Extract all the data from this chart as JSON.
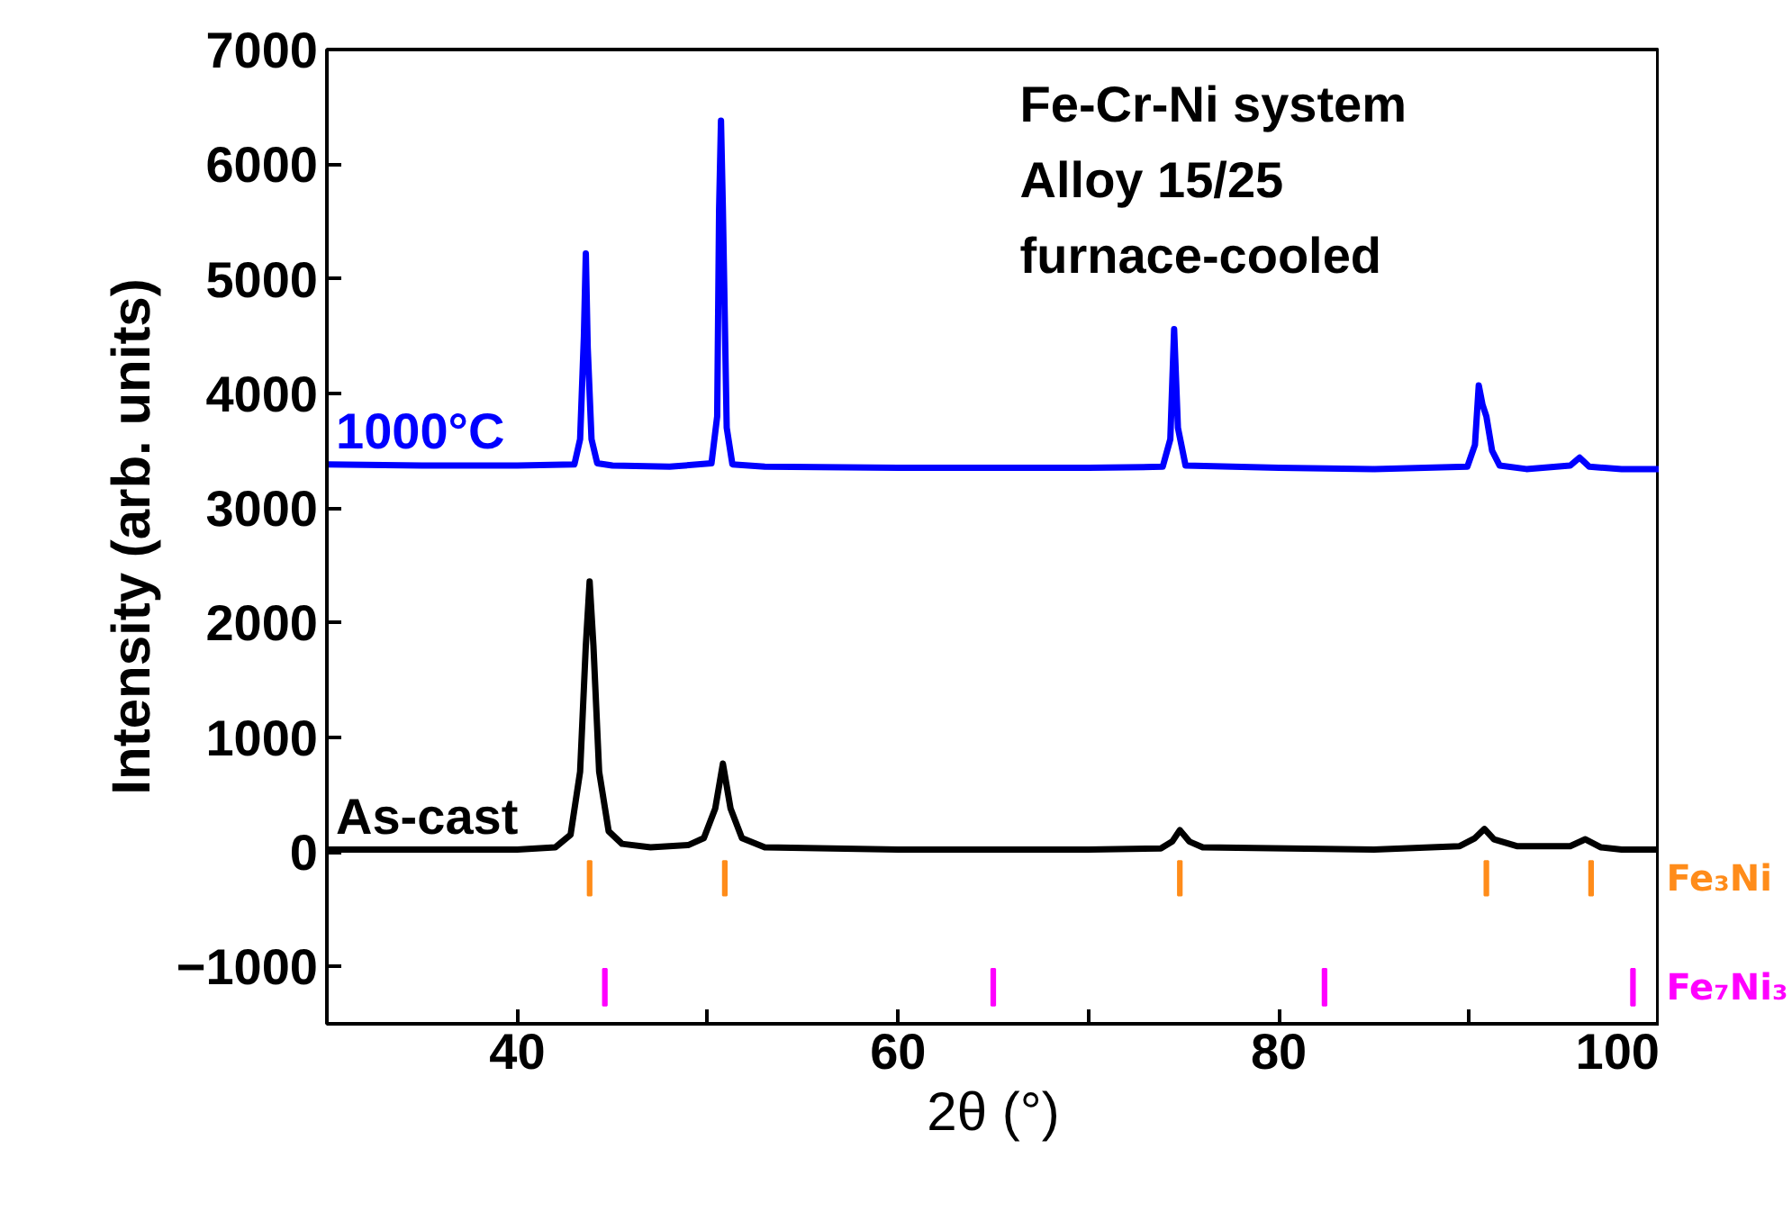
{
  "chart_data": {
    "type": "line",
    "xlabel": "2θ (°)",
    "ylabel": "Intensity (arb. units)",
    "xlim": [
      30,
      100
    ],
    "ylim": [
      -1500,
      7000
    ],
    "xticks": [
      40,
      {
        "value": 50,
        "label": null
      },
      60,
      {
        "value": 70,
        "label": null
      },
      80,
      {
        "value": 90,
        "label": null
      },
      100
    ],
    "yticks": [
      -1000,
      0,
      1000,
      2000,
      3000,
      4000,
      5000,
      6000,
      7000
    ],
    "grid": false,
    "annotations": [
      "Fe-Cr-Ni system",
      "Alloy 15/25",
      "furnace-cooled"
    ],
    "series": [
      {
        "name": "1000°C",
        "color": "#0000ff",
        "x": [
          30,
          35,
          40,
          43.0,
          43.3,
          43.5,
          43.6,
          43.7,
          43.9,
          44.2,
          45,
          48,
          50.2,
          50.5,
          50.6,
          50.7,
          50.8,
          51.0,
          51.3,
          53,
          60,
          70,
          73.9,
          74.3,
          74.5,
          74.7,
          75.1,
          80,
          85,
          89.9,
          90.3,
          90.5,
          90.7,
          90.9,
          91.2,
          91.6,
          93,
          95.3,
          95.8,
          96.3,
          98,
          100
        ],
        "values": [
          3380,
          3370,
          3370,
          3380,
          3600,
          4500,
          5220,
          4400,
          3600,
          3390,
          3370,
          3360,
          3390,
          3800,
          5600,
          6380,
          5600,
          3700,
          3380,
          3360,
          3350,
          3350,
          3360,
          3600,
          4560,
          3700,
          3370,
          3350,
          3340,
          3360,
          3550,
          4070,
          3900,
          3800,
          3500,
          3370,
          3340,
          3370,
          3440,
          3360,
          3340,
          3340
        ]
      },
      {
        "name": "As-cast",
        "color": "#000000",
        "x": [
          30,
          35,
          40,
          42,
          42.8,
          43.3,
          43.6,
          43.8,
          44.0,
          44.3,
          44.8,
          45.5,
          47,
          49,
          49.8,
          50.4,
          50.8,
          51.2,
          51.8,
          53,
          60,
          70,
          73.8,
          74.4,
          74.8,
          75.3,
          76,
          85,
          89.5,
          90.3,
          90.8,
          91.3,
          92.5,
          95.3,
          96.1,
          96.9,
          98,
          100
        ],
        "values": [
          20,
          20,
          20,
          40,
          150,
          700,
          1800,
          2360,
          1800,
          700,
          180,
          70,
          40,
          60,
          120,
          380,
          770,
          380,
          120,
          40,
          20,
          20,
          30,
          90,
          190,
          90,
          40,
          20,
          50,
          120,
          200,
          110,
          50,
          50,
          110,
          40,
          20,
          20
        ]
      },
      {
        "name": "Fe₃Ni",
        "type": "bar",
        "color": "#ff8c1a",
        "x": [
          43.8,
          50.9,
          74.8,
          90.9,
          96.4
        ],
        "base": [
          -80,
          -80,
          -80,
          -80,
          -80
        ],
        "values": [
          -300,
          -300,
          -300,
          -300,
          -300
        ]
      },
      {
        "name": "Fe₇Ni₃",
        "type": "bar",
        "color": "#ff00ff",
        "x": [
          44.6,
          65.0,
          82.4,
          98.6
        ],
        "base": [
          -1020,
          -1020,
          -1020,
          -1020
        ],
        "values": [
          -320,
          -320,
          -320,
          -320
        ]
      }
    ]
  }
}
